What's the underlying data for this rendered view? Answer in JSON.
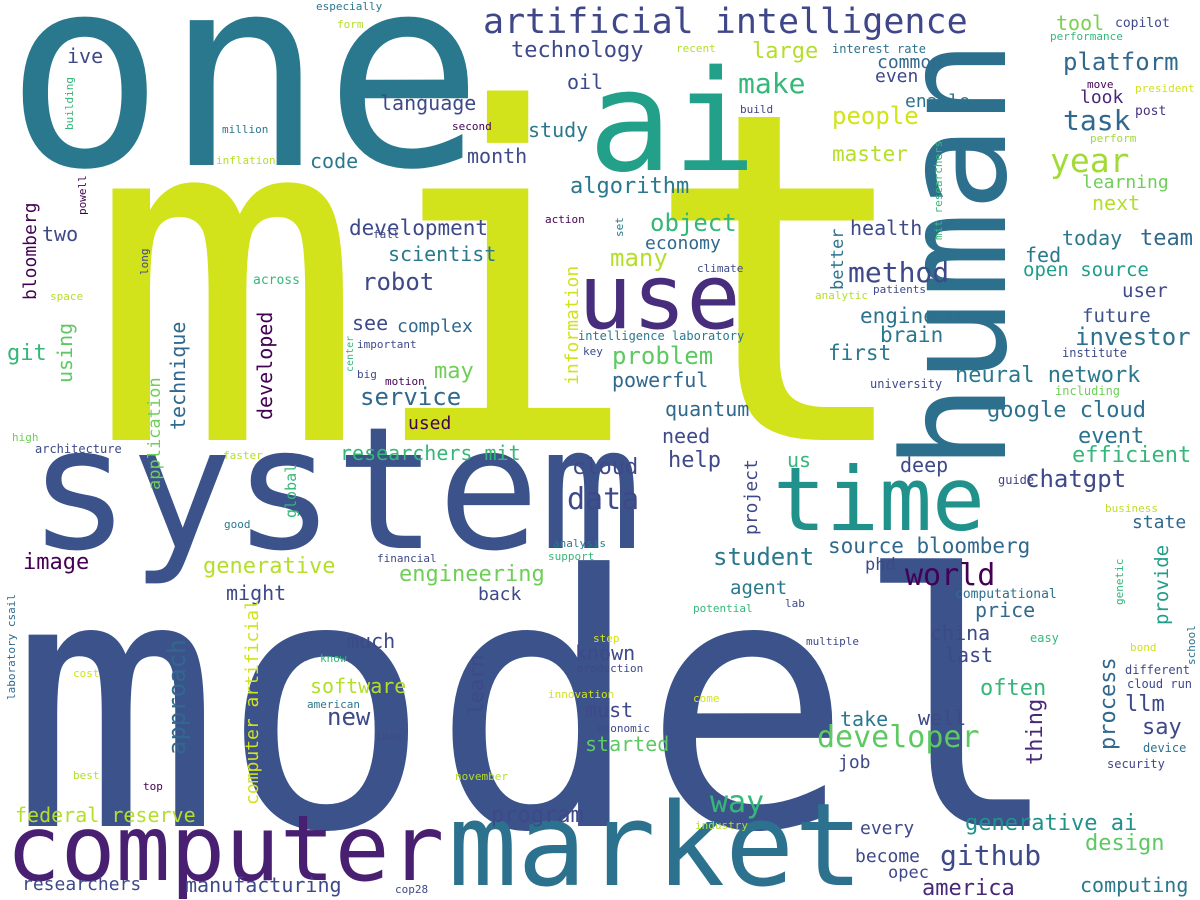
{
  "words": [
    "one",
    "mit",
    "model",
    "system",
    "human",
    "ai",
    "use",
    "time",
    "computer",
    "market",
    "artificial intelligence",
    "platform",
    "year",
    "task",
    "tool",
    "copilot",
    "performance",
    "president",
    "move",
    "post",
    "perform",
    "look",
    "learning",
    "next",
    "team",
    "today",
    "fed",
    "open source",
    "user",
    "future",
    "investor",
    "institute",
    "including",
    "neural network",
    "google cloud",
    "event",
    "efficient",
    "chatgpt",
    "guide",
    "business",
    "state",
    "provide",
    "genetic",
    "school",
    "computational",
    "process",
    "bond",
    "different",
    "cloud run",
    "llm",
    "say",
    "device",
    "security",
    "design",
    "computing",
    "easy",
    "generative ai",
    "github",
    "america",
    "opec",
    "become",
    "every",
    "thing",
    "well",
    "take",
    "developer",
    "job",
    "often",
    "last",
    "china",
    "price",
    "agent",
    "lab",
    "phd",
    "world",
    "source bloomberg",
    "student",
    "us",
    "deep",
    "first",
    "brain",
    "engineer",
    "method",
    "health",
    "better",
    "patients",
    "analytic",
    "university",
    "mit researchers",
    "people",
    "master",
    "make",
    "large",
    "interest rate",
    "common",
    "even",
    "enable",
    "build",
    "recent",
    "technology",
    "oil",
    "language",
    "study",
    "month",
    "code",
    "algorithm",
    "object",
    "economy",
    "development",
    "scientist",
    "many",
    "information",
    "robot",
    "problem",
    "see",
    "complex",
    "may",
    "service",
    "powerful",
    "quantum",
    "need",
    "help",
    "used",
    "researchers mit",
    "cloud",
    "data",
    "project",
    "generative",
    "engineering",
    "might",
    "back",
    "image",
    "much",
    "known",
    "learn",
    "software",
    "new",
    "must",
    "started",
    "way",
    "program",
    "approach",
    "computer artificial",
    "federal reserve",
    "researchers",
    "manufacturing",
    "cop28",
    "global",
    "application",
    "technique",
    "developed",
    "using",
    "git",
    "bloomberg",
    "two",
    "ive",
    "building",
    "especially",
    "form",
    "million",
    "inflation",
    "powell",
    "second",
    "long",
    "space",
    "across",
    "fall",
    "action",
    "set",
    "climate",
    "intelligence laboratory",
    "key",
    "important",
    "center",
    "big",
    "motion",
    "high",
    "architecture",
    "faster",
    "good",
    "financial",
    "support",
    "analysis",
    "potential",
    "step",
    "multiple",
    "production",
    "know",
    "cost",
    "laboratory csail",
    "innovation",
    "come",
    "american",
    "economic",
    "idea",
    "best",
    "top",
    "november",
    "industry"
  ]
}
